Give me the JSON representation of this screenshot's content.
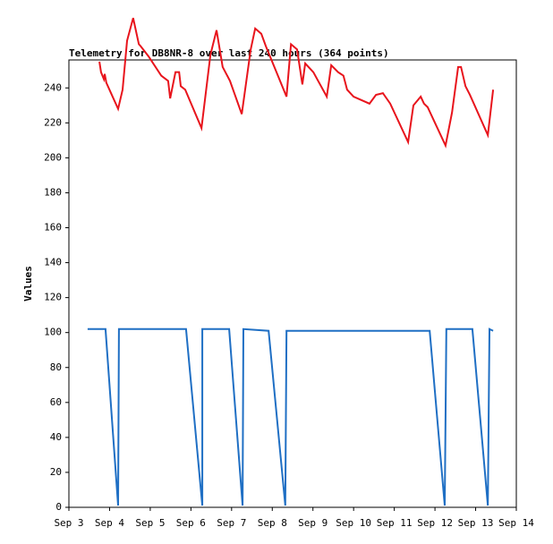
{
  "chart_data": {
    "type": "line",
    "title": "Telemetry for DB8NR-8 over last 240 hours (364 points)",
    "y_label": "Values",
    "xlim": [
      3,
      14
    ],
    "xticks": [
      {
        "value": 3,
        "label": "Sep 3"
      },
      {
        "value": 4,
        "label": "Sep 4"
      },
      {
        "value": 5,
        "label": "Sep 5"
      },
      {
        "value": 6,
        "label": "Sep 6"
      },
      {
        "value": 7,
        "label": "Sep 7"
      },
      {
        "value": 8,
        "label": "Sep 8"
      },
      {
        "value": 9,
        "label": "Sep 9"
      },
      {
        "value": 10,
        "label": "Sep 10"
      },
      {
        "value": 11,
        "label": "Sep 11"
      },
      {
        "value": 12,
        "label": "Sep 12"
      },
      {
        "value": 13,
        "label": "Sep 13"
      },
      {
        "value": 14,
        "label": "Sep 14"
      }
    ],
    "ylim": [
      0,
      256
    ],
    "yticks": [
      0,
      20,
      40,
      60,
      80,
      100,
      120,
      140,
      160,
      180,
      200,
      220,
      240
    ],
    "grid": false,
    "series": [
      {
        "color": "#e8141c",
        "x": [
          3.75,
          3.79,
          3.86,
          3.88,
          3.92,
          4.21,
          4.32,
          4.43,
          4.58,
          4.72,
          4.76,
          4.96,
          5.27,
          5.44,
          5.49,
          5.62,
          5.71,
          5.75,
          5.86,
          6.26,
          6.48,
          6.63,
          6.78,
          6.96,
          7.25,
          7.47,
          7.58,
          7.73,
          7.84,
          8.35,
          8.46,
          8.61,
          8.74,
          8.81,
          9.01,
          9.34,
          9.45,
          9.62,
          9.75,
          9.84,
          10.0,
          10.39,
          10.55,
          10.72,
          10.9,
          11.34,
          11.47,
          11.65,
          11.73,
          11.82,
          12.26,
          12.42,
          12.57,
          12.64,
          12.75,
          12.86,
          13.3,
          13.43
        ],
        "values": [
          255,
          249,
          245,
          248,
          243,
          228,
          239,
          267,
          280,
          265,
          264,
          258,
          247,
          244,
          234,
          249,
          249,
          241,
          239,
          217,
          259,
          273,
          252,
          244,
          225,
          262,
          274,
          271,
          264,
          235,
          265,
          262,
          242,
          254,
          249,
          235,
          253,
          249,
          247,
          239,
          235,
          231,
          236,
          237,
          231,
          209,
          230,
          235,
          231,
          229,
          207,
          226,
          252,
          252,
          241,
          236,
          213,
          239
        ]
      },
      {
        "color": "#1f6fc4",
        "x": [
          3.46,
          3.9,
          4.21,
          4.23,
          5.88,
          6.28,
          6.28,
          6.94,
          7.27,
          7.29,
          7.91,
          8.32,
          8.35,
          11.87,
          12.24,
          12.28,
          12.92,
          13.3,
          13.34,
          13.43
        ],
        "values": [
          102,
          102,
          1,
          102,
          102,
          1,
          102,
          102,
          1,
          102,
          101,
          1,
          101,
          101,
          1,
          102,
          102,
          1,
          102,
          101
        ]
      }
    ]
  }
}
